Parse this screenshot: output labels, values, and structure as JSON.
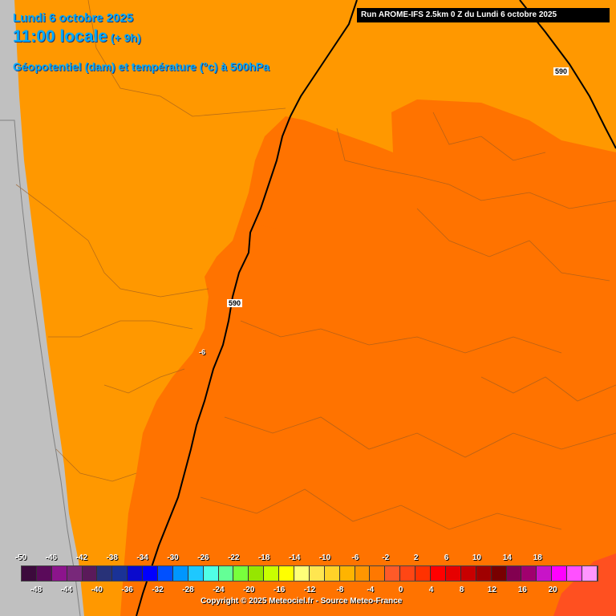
{
  "header": {
    "date": "Lundi 6 octobre 2025",
    "hour": "11:00 locale",
    "offset": "(+ 9h)",
    "parameter": "Géopotentiel (dam) et température (°c) à 500hPa",
    "run": "Run AROME-IFS 2.5km 0 Z du Lundi 6 octobre 2025"
  },
  "contours": {
    "label_north": "590",
    "label_middle": "590",
    "temp_label": "-6"
  },
  "legend": {
    "top_labels": [
      "-50",
      "-46",
      "-42",
      "-38",
      "-34",
      "-30",
      "-26",
      "-22",
      "-18",
      "-14",
      "-10",
      "-6",
      "-2",
      "2",
      "6",
      "10",
      "14",
      "18"
    ],
    "bottom_labels": [
      "-48",
      "-44",
      "-40",
      "-36",
      "-32",
      "-28",
      "-24",
      "-20",
      "-16",
      "-12",
      "-8",
      "-4",
      "0",
      "4",
      "8",
      "12",
      "16",
      "20"
    ],
    "colors": [
      "#3c0a3c",
      "#5a0a5a",
      "#8c148c",
      "#78287a",
      "#5a1a5a",
      "#283278",
      "#1a3296",
      "#0a0acd",
      "#0000ff",
      "#0050ff",
      "#0096ff",
      "#1ec8ff",
      "#50ffe6",
      "#64ff96",
      "#78ff3c",
      "#96e600",
      "#c8ff00",
      "#ffff00",
      "#ffff78",
      "#ffe650",
      "#ffd228",
      "#ffb400",
      "#ff9600",
      "#ff7800",
      "#ff5a28",
      "#ff4614",
      "#ff3200",
      "#ff0000",
      "#e60000",
      "#c80000",
      "#a00000",
      "#780000",
      "#820050",
      "#a0006e",
      "#c814c8",
      "#ff00ff",
      "#ff50ff",
      "#ff96ff"
    ]
  },
  "footer": {
    "copyright": "Copyright © 2025 Meteociel.fr - Source Meteo-France"
  }
}
